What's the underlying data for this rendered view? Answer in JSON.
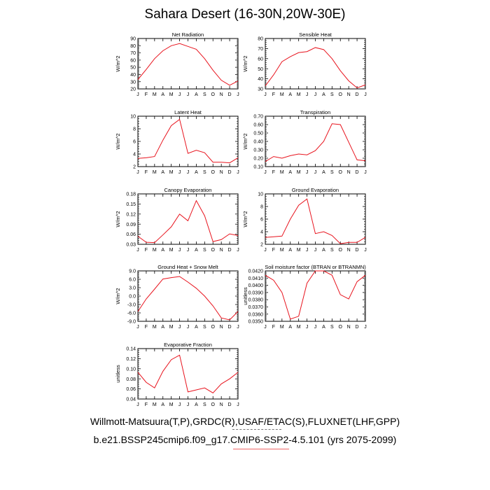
{
  "page": {
    "title": "Sahara Desert (16-30N,20W-30E)",
    "caption_line1": "Willmott-Matsuura(T,P),GRDC(R),USAF/ETAC(S),FLUXNET(LHF,GPP)",
    "caption_line2": "b.e21.BSSP245cmip6.f09_g17.CMIP6-SSP2-4.5.101 (yrs 2075-2099)"
  },
  "colors": {
    "series_line": "#e8141e",
    "axis": "#000000"
  },
  "chart_data": [
    {
      "type": "line",
      "title": "Net Radiation",
      "ylabel": "W/m^2",
      "x": [
        "J",
        "F",
        "M",
        "A",
        "M",
        "J",
        "J",
        "A",
        "S",
        "O",
        "N",
        "D",
        "J"
      ],
      "ylim": [
        20,
        90
      ],
      "yticks": [
        20,
        30,
        40,
        50,
        60,
        70,
        80,
        90
      ],
      "ytick_labels": [
        "20",
        "30",
        "40",
        "50",
        "60",
        "70",
        "80",
        "90"
      ],
      "series": [
        {
          "values": [
            33,
            47,
            62,
            73,
            80,
            83,
            79,
            75,
            62,
            46,
            32,
            25,
            31
          ]
        }
      ]
    },
    {
      "type": "line",
      "title": "Sensible Heat",
      "ylabel": "W/m^2",
      "x": [
        "J",
        "F",
        "M",
        "A",
        "M",
        "J",
        "J",
        "A",
        "S",
        "O",
        "N",
        "D",
        "J"
      ],
      "ylim": [
        30,
        80
      ],
      "yticks": [
        30,
        40,
        50,
        60,
        70,
        80
      ],
      "ytick_labels": [
        "30",
        "40",
        "50",
        "60",
        "70",
        "80"
      ],
      "series": [
        {
          "values": [
            33,
            44,
            57,
            62,
            66,
            67,
            71,
            69,
            60,
            48,
            38,
            31,
            34
          ]
        }
      ]
    },
    {
      "type": "line",
      "title": "Latent Heat",
      "ylabel": "W/m^2",
      "x": [
        "J",
        "F",
        "M",
        "A",
        "M",
        "J",
        "J",
        "A",
        "S",
        "O",
        "N",
        "D",
        "J"
      ],
      "ylim": [
        2,
        10
      ],
      "yticks": [
        2,
        4,
        6,
        8,
        10
      ],
      "ytick_labels": [
        "2",
        "4",
        "6",
        "8",
        "10"
      ],
      "series": [
        {
          "values": [
            3.3,
            3.4,
            3.6,
            6.2,
            8.5,
            9.5,
            4.1,
            4.6,
            4.2,
            2.7,
            2.7,
            2.6,
            3.4
          ]
        }
      ]
    },
    {
      "type": "line",
      "title": "Transpiration",
      "ylabel": "W/m^2",
      "x": [
        "J",
        "F",
        "M",
        "A",
        "M",
        "J",
        "J",
        "A",
        "S",
        "O",
        "N",
        "D",
        "J"
      ],
      "ylim": [
        0.1,
        0.7
      ],
      "yticks": [
        0.1,
        0.2,
        0.3,
        0.4,
        0.5,
        0.6,
        0.7
      ],
      "ytick_labels": [
        "0.10",
        "0.20",
        "0.30",
        "0.40",
        "0.50",
        "0.60",
        "0.70"
      ],
      "series": [
        {
          "values": [
            0.16,
            0.22,
            0.2,
            0.23,
            0.25,
            0.24,
            0.29,
            0.4,
            0.61,
            0.6,
            0.39,
            0.18,
            0.17
          ]
        }
      ]
    },
    {
      "type": "line",
      "title": "Canopy Evaporation",
      "ylabel": "W/m^2",
      "x": [
        "J",
        "F",
        "M",
        "A",
        "M",
        "J",
        "J",
        "A",
        "S",
        "O",
        "N",
        "D",
        "J"
      ],
      "ylim": [
        0.03,
        0.18
      ],
      "yticks": [
        0.03,
        0.06,
        0.09,
        0.12,
        0.15,
        0.18
      ],
      "ytick_labels": [
        "0.03",
        "0.06",
        "0.09",
        "0.12",
        "0.15",
        "0.18"
      ],
      "series": [
        {
          "values": [
            0.054,
            0.036,
            0.035,
            0.058,
            0.082,
            0.12,
            0.1,
            0.16,
            0.115,
            0.038,
            0.044,
            0.061,
            0.056
          ]
        }
      ]
    },
    {
      "type": "line",
      "title": "Ground Evaporation",
      "ylabel": "W/m^2",
      "x": [
        "J",
        "F",
        "M",
        "A",
        "M",
        "J",
        "J",
        "A",
        "S",
        "O",
        "N",
        "D",
        "J"
      ],
      "ylim": [
        2,
        10
      ],
      "yticks": [
        2,
        4,
        6,
        8,
        10
      ],
      "ytick_labels": [
        "2",
        "4",
        "6",
        "8",
        "10"
      ],
      "series": [
        {
          "values": [
            3.1,
            3.2,
            3.3,
            6.0,
            8.2,
            9.2,
            3.7,
            4.0,
            3.4,
            2.1,
            2.3,
            2.3,
            3.1
          ]
        }
      ]
    },
    {
      "type": "line",
      "title": "Ground Heat + Snow Melt",
      "ylabel": "W/m^2",
      "x": [
        "J",
        "F",
        "M",
        "A",
        "M",
        "J",
        "J",
        "A",
        "S",
        "O",
        "N",
        "D",
        "J"
      ],
      "ylim": [
        -9.0,
        9.0
      ],
      "yticks": [
        -9.0,
        -6.0,
        -3.0,
        0.0,
        3.0,
        6.0,
        9.0
      ],
      "ytick_labels": [
        "-9.0",
        "-6.0",
        "-3.0",
        "0.0",
        "3.0",
        "6.0",
        "9.0"
      ],
      "series": [
        {
          "values": [
            -5.5,
            -1.0,
            2.5,
            6.1,
            6.6,
            7.0,
            5.0,
            2.8,
            0.0,
            -3.5,
            -7.8,
            -8.5,
            -5.5
          ]
        }
      ]
    },
    {
      "type": "line",
      "title": "Soil moisture factor (BTRAN or BTRANMN)",
      "ylabel": "unitless",
      "x": [
        "J",
        "F",
        "M",
        "A",
        "M",
        "J",
        "J",
        "A",
        "S",
        "O",
        "N",
        "D",
        "J"
      ],
      "ylim": [
        0.035,
        0.042
      ],
      "yticks": [
        0.035,
        0.036,
        0.037,
        0.038,
        0.039,
        0.04,
        0.041,
        0.042
      ],
      "ytick_labels": [
        "0.0350",
        "0.0360",
        "0.0370",
        "0.0380",
        "0.0390",
        "0.0400",
        "0.0410",
        "0.0420"
      ],
      "series": [
        {
          "values": [
            0.0414,
            0.0407,
            0.039,
            0.0353,
            0.0357,
            0.0403,
            0.042,
            0.042,
            0.0414,
            0.0387,
            0.0381,
            0.0405,
            0.0414
          ]
        }
      ]
    },
    {
      "type": "line",
      "title": "Evaporative Fraction",
      "ylabel": "unitless",
      "x": [
        "J",
        "F",
        "M",
        "A",
        "M",
        "J",
        "J",
        "A",
        "S",
        "O",
        "N",
        "D",
        "J"
      ],
      "ylim": [
        0.04,
        0.14
      ],
      "yticks": [
        0.04,
        0.06,
        0.08,
        0.1,
        0.12,
        0.14
      ],
      "ytick_labels": [
        "0.04",
        "0.06",
        "0.08",
        "0.10",
        "0.12",
        "0.14"
      ],
      "series": [
        {
          "values": [
            0.093,
            0.073,
            0.062,
            0.095,
            0.118,
            0.127,
            0.054,
            0.058,
            0.062,
            0.052,
            0.07,
            0.08,
            0.093
          ]
        }
      ]
    }
  ]
}
